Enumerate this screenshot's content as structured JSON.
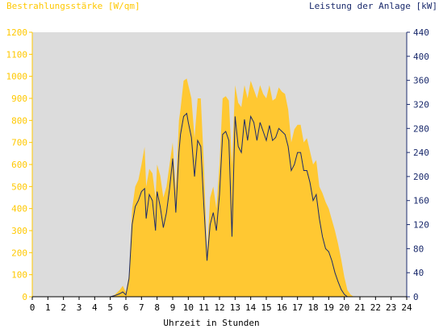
{
  "colors": {
    "plot_bg": "#dcdcdc",
    "irradiance_fill": "#ffc832",
    "power_line": "#1a2a6c",
    "left_axis": "#ffc800",
    "right_axis": "#1a2a6c",
    "x_axis": "#000000"
  },
  "chart_data": {
    "type": "area",
    "ylabel": "Bestrahlungsstärke [W/qm]",
    "y2label": "Leistung der Anlage [kW]",
    "xlabel": "Uhrzeit in Stunden",
    "xlim": [
      0,
      24
    ],
    "ylim": [
      0,
      1200
    ],
    "y2lim": [
      0,
      440
    ],
    "x_ticks": [
      "0",
      "1",
      "2",
      "3",
      "4",
      "5",
      "6",
      "7",
      "8",
      "9",
      "10",
      "11",
      "12",
      "13",
      "14",
      "15",
      "16",
      "17",
      "18",
      "19",
      "20",
      "21",
      "22",
      "23",
      "24"
    ],
    "y_ticks": [
      "0",
      "100",
      "200",
      "300",
      "400",
      "500",
      "600",
      "700",
      "800",
      "900",
      "1000",
      "1100",
      "1200"
    ],
    "y2_ticks": [
      "0",
      "40",
      "80",
      "120",
      "160",
      "200",
      "240",
      "280",
      "320",
      "360",
      "400",
      "440"
    ],
    "grid": false,
    "series": [
      {
        "name": "Bestrahlungsstärke [W/qm]",
        "axis": "left",
        "type": "area",
        "x": [
          0,
          5,
          5.3,
          5.6,
          5.8,
          6.0,
          6.2,
          6.4,
          6.6,
          6.8,
          7.0,
          7.2,
          7.3,
          7.5,
          7.7,
          7.9,
          8.0,
          8.2,
          8.4,
          8.6,
          8.8,
          9.0,
          9.2,
          9.4,
          9.5,
          9.7,
          9.9,
          10.0,
          10.2,
          10.4,
          10.6,
          10.8,
          11.0,
          11.2,
          11.4,
          11.6,
          11.8,
          12.0,
          12.2,
          12.4,
          12.6,
          12.8,
          13.0,
          13.2,
          13.4,
          13.6,
          13.8,
          14.0,
          14.2,
          14.4,
          14.6,
          14.8,
          15.0,
          15.2,
          15.4,
          15.6,
          15.8,
          16.0,
          16.2,
          16.4,
          16.6,
          16.8,
          17.0,
          17.2,
          17.4,
          17.6,
          17.8,
          18.0,
          18.2,
          18.4,
          18.6,
          18.8,
          19.0,
          19.2,
          19.4,
          19.6,
          19.8,
          20.0,
          20.2,
          20.4,
          20.6,
          24
        ],
        "y": [
          0,
          0,
          10,
          30,
          50,
          20,
          100,
          400,
          500,
          530,
          600,
          680,
          500,
          580,
          560,
          450,
          600,
          550,
          450,
          500,
          600,
          700,
          480,
          800,
          850,
          980,
          990,
          960,
          900,
          720,
          900,
          900,
          600,
          200,
          450,
          500,
          400,
          600,
          900,
          910,
          890,
          600,
          960,
          880,
          860,
          960,
          900,
          980,
          940,
          900,
          960,
          920,
          900,
          960,
          890,
          900,
          950,
          930,
          920,
          850,
          700,
          760,
          780,
          780,
          700,
          720,
          660,
          600,
          620,
          500,
          470,
          430,
          400,
          350,
          300,
          240,
          170,
          90,
          30,
          10,
          0,
          0
        ]
      },
      {
        "name": "Leistung der Anlage [kW]",
        "axis": "right",
        "type": "line",
        "x": [
          0,
          5,
          5.3,
          5.6,
          5.8,
          6.0,
          6.2,
          6.4,
          6.6,
          6.8,
          7.0,
          7.2,
          7.3,
          7.5,
          7.7,
          7.9,
          8.0,
          8.2,
          8.4,
          8.6,
          8.8,
          9.0,
          9.2,
          9.4,
          9.5,
          9.7,
          9.9,
          10.0,
          10.2,
          10.4,
          10.6,
          10.8,
          11.0,
          11.2,
          11.4,
          11.6,
          11.8,
          12.0,
          12.2,
          12.4,
          12.6,
          12.8,
          13.0,
          13.2,
          13.4,
          13.6,
          13.8,
          14.0,
          14.2,
          14.4,
          14.6,
          14.8,
          15.0,
          15.2,
          15.4,
          15.6,
          15.8,
          16.0,
          16.2,
          16.4,
          16.6,
          16.8,
          17.0,
          17.2,
          17.4,
          17.6,
          17.8,
          18.0,
          18.2,
          18.4,
          18.6,
          18.8,
          19.0,
          19.2,
          19.4,
          19.6,
          19.8,
          20.0,
          20.2,
          20.4,
          20.6,
          24
        ],
        "y": [
          0,
          0,
          2,
          5,
          8,
          3,
          30,
          120,
          150,
          160,
          175,
          180,
          130,
          170,
          160,
          110,
          175,
          150,
          115,
          140,
          180,
          230,
          140,
          240,
          270,
          300,
          305,
          290,
          265,
          200,
          260,
          250,
          150,
          60,
          120,
          140,
          110,
          170,
          270,
          275,
          260,
          100,
          300,
          250,
          240,
          295,
          260,
          300,
          290,
          260,
          290,
          275,
          260,
          285,
          260,
          265,
          280,
          275,
          270,
          250,
          210,
          220,
          240,
          240,
          210,
          210,
          190,
          160,
          170,
          130,
          100,
          80,
          75,
          60,
          40,
          25,
          12,
          4,
          0,
          0,
          0,
          0
        ]
      }
    ]
  }
}
